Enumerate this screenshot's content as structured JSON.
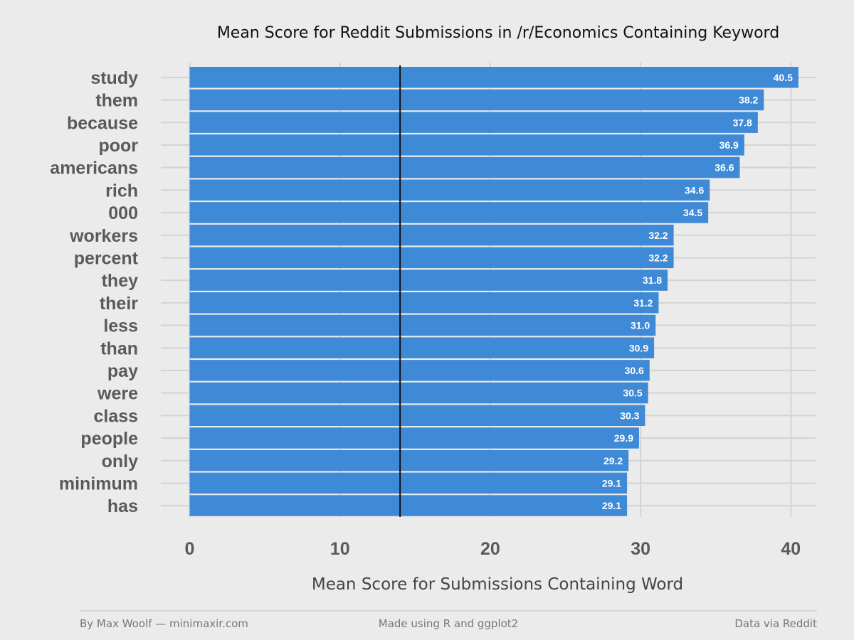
{
  "chart_data": {
    "type": "bar",
    "orientation": "horizontal",
    "title": "Mean Score for Reddit Submissions in /r/Economics Containing Keyword",
    "xlabel": "Mean Score for Submissions Containing Word",
    "ylabel": "",
    "categories": [
      "study",
      "them",
      "because",
      "poor",
      "americans",
      "rich",
      "000",
      "workers",
      "percent",
      "they",
      "their",
      "less",
      "than",
      "pay",
      "were",
      "class",
      "people",
      "only",
      "minimum",
      "has"
    ],
    "values": [
      40.5,
      38.2,
      37.8,
      36.9,
      36.6,
      34.6,
      34.5,
      32.2,
      32.2,
      31.8,
      31.2,
      31.0,
      30.9,
      30.6,
      30.5,
      30.3,
      29.9,
      29.2,
      29.1,
      29.1
    ],
    "value_labels": [
      "40.5",
      "38.2",
      "37.8",
      "36.9",
      "36.6",
      "34.6",
      "34.5",
      "32.2",
      "32.2",
      "31.8",
      "31.2",
      "31.0",
      "30.9",
      "30.6",
      "30.5",
      "30.3",
      "29.9",
      "29.2",
      "29.1",
      "29.1"
    ],
    "xlim": [
      0,
      41.5
    ],
    "xticks": [
      0,
      10,
      20,
      30,
      40
    ],
    "reference_line": 14,
    "grid": true,
    "bar_color": "#3f8ad6",
    "background": "#ebebeb"
  },
  "footer": {
    "left": "By Max Woolf — minimaxir.com",
    "center": "Made using R and ggplot2",
    "right": "Data via Reddit"
  }
}
